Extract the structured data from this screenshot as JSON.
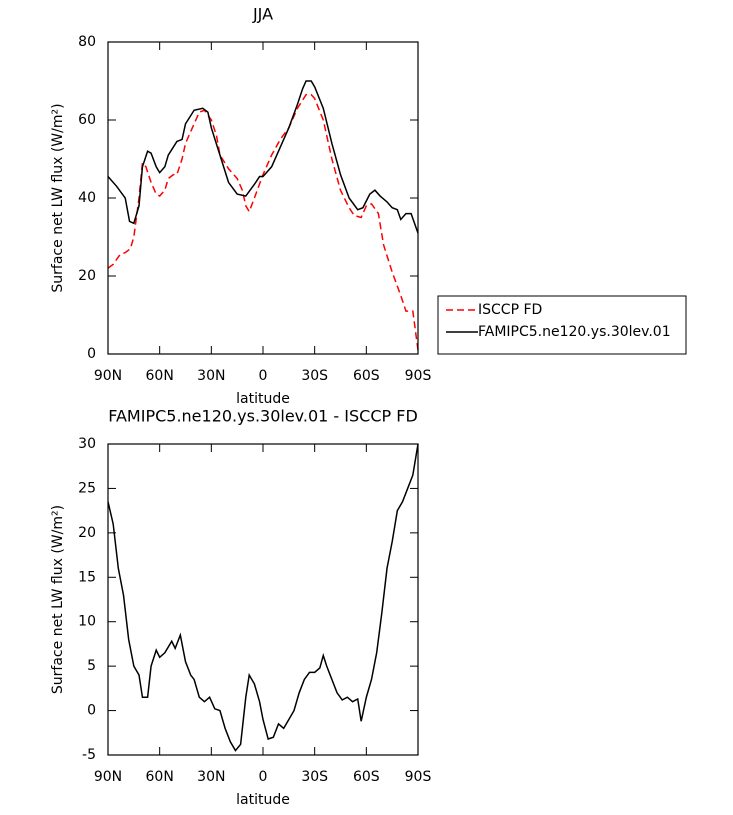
{
  "chart_data": [
    {
      "type": "line",
      "title": "JJA",
      "xlabel": "latitude",
      "ylabel": "Surface net LW flux (W/m²)",
      "xlim": [
        90,
        -90
      ],
      "ylim": [
        0,
        80
      ],
      "xticks": [
        {
          "value": 90,
          "label": "90N"
        },
        {
          "value": 60,
          "label": "60N"
        },
        {
          "value": 30,
          "label": "30N"
        },
        0,
        {
          "value": -30,
          "label": "30S"
        },
        {
          "value": -60,
          "label": "60S"
        },
        {
          "value": -90,
          "label": "90S"
        }
      ],
      "yticks": [
        0,
        20,
        40,
        60,
        80
      ],
      "legend": "right",
      "series": [
        {
          "name": "ISCCP FD",
          "color": "#ff0000",
          "dash": "dashed",
          "x": [
            90,
            87,
            83,
            80,
            77,
            75,
            72,
            70,
            68,
            65,
            62,
            60,
            57,
            55,
            52,
            50,
            47,
            45,
            40,
            37,
            34,
            30,
            27,
            25,
            20,
            15,
            12,
            10,
            8,
            5,
            0,
            -5,
            -10,
            -15,
            -20,
            -25,
            -28,
            -30,
            -35,
            -40,
            -45,
            -50,
            -53,
            -57,
            -60,
            -63,
            -67,
            -70,
            -75,
            -80,
            -83,
            -87,
            -90
          ],
          "values": [
            22,
            23,
            25.5,
            26,
            27,
            30,
            40,
            49,
            48,
            44,
            41,
            40.5,
            42,
            45,
            46,
            46,
            50,
            54,
            59,
            62,
            62.5,
            60,
            56,
            51,
            47.5,
            45,
            42,
            38,
            36.5,
            40,
            46,
            51,
            55,
            58,
            63,
            66.5,
            66.5,
            65.5,
            60,
            50,
            42,
            37.5,
            35.5,
            35,
            38,
            38.5,
            36,
            28,
            21,
            15,
            11,
            11,
            1
          ]
        },
        {
          "name": "FAMIPC5.ne120.ys.30lev.01",
          "color": "#000000",
          "dash": "solid",
          "x": [
            90,
            85,
            80,
            77.5,
            75,
            72,
            70,
            67,
            65,
            62,
            60,
            57,
            55,
            50,
            47,
            45,
            40,
            35,
            32,
            30,
            25,
            20,
            15,
            10,
            5,
            2,
            0,
            -5,
            -10,
            -15,
            -20,
            -23,
            -25,
            -28,
            -30,
            -35,
            -40,
            -45,
            -50,
            -55,
            -58,
            -62,
            -65,
            -68,
            -72,
            -75,
            -78,
            -80,
            -83,
            -86,
            -90
          ],
          "values": [
            45.5,
            43,
            40,
            34,
            33.5,
            38,
            48,
            52,
            51.5,
            48,
            46.5,
            48,
            51,
            54.5,
            55,
            59,
            62.5,
            63,
            62,
            58,
            51,
            44,
            41,
            40.5,
            43.5,
            45.5,
            45.5,
            48,
            53,
            58,
            64,
            68,
            70,
            70,
            68.5,
            63,
            54,
            46,
            40,
            37,
            37.5,
            41,
            42,
            40.5,
            39,
            37.5,
            37,
            34.5,
            36,
            36,
            31
          ]
        }
      ]
    },
    {
      "type": "line",
      "title": "FAMIPC5.ne120.ys.30lev.01 - ISCCP FD",
      "xlabel": "latitude",
      "ylabel": "Surface net LW flux (W/m²)",
      "xlim": [
        90,
        -90
      ],
      "ylim": [
        -5,
        30
      ],
      "xticks": [
        {
          "value": 90,
          "label": "90N"
        },
        {
          "value": 60,
          "label": "60N"
        },
        {
          "value": 30,
          "label": "30N"
        },
        0,
        {
          "value": -30,
          "label": "30S"
        },
        {
          "value": -60,
          "label": "60S"
        },
        {
          "value": -90,
          "label": "90S"
        }
      ],
      "yticks": [
        -5,
        0,
        5,
        10,
        15,
        20,
        25,
        30
      ],
      "series": [
        {
          "color": "#000000",
          "dash": "solid",
          "x": [
            90,
            87,
            84,
            81,
            78,
            75,
            72,
            70,
            67,
            65,
            62,
            60,
            57,
            53,
            51,
            48,
            45,
            42,
            40,
            37,
            34,
            31,
            28,
            25,
            22,
            19,
            16,
            13,
            10,
            8,
            5,
            2,
            0,
            -3,
            -6,
            -9,
            -12,
            -15,
            -18,
            -21,
            -24,
            -27,
            -30,
            -33,
            -35,
            -37,
            -40,
            -43,
            -46,
            -49,
            -52,
            -55,
            -57,
            -60,
            -63,
            -66,
            -69,
            -72,
            -75,
            -78,
            -81,
            -84,
            -87,
            -90
          ],
          "values": [
            23.5,
            21,
            16,
            13,
            8,
            5,
            4,
            1.5,
            1.5,
            5,
            6.8,
            6,
            6.5,
            7.8,
            7,
            8.5,
            5.5,
            4,
            3.5,
            1.5,
            1,
            1.5,
            0.2,
            0,
            -2,
            -3.5,
            -4.5,
            -3.8,
            1.5,
            4,
            3,
            1,
            -1,
            -3.2,
            -3,
            -1.5,
            -2,
            -1,
            0,
            2,
            3.5,
            4.3,
            4.3,
            4.8,
            6.2,
            5,
            3.5,
            2,
            1.2,
            1.5,
            1,
            1.3,
            -1.2,
            1.5,
            3.5,
            6.5,
            11,
            16,
            19,
            22.5,
            23.5,
            25,
            26.5,
            30
          ]
        }
      ]
    }
  ]
}
